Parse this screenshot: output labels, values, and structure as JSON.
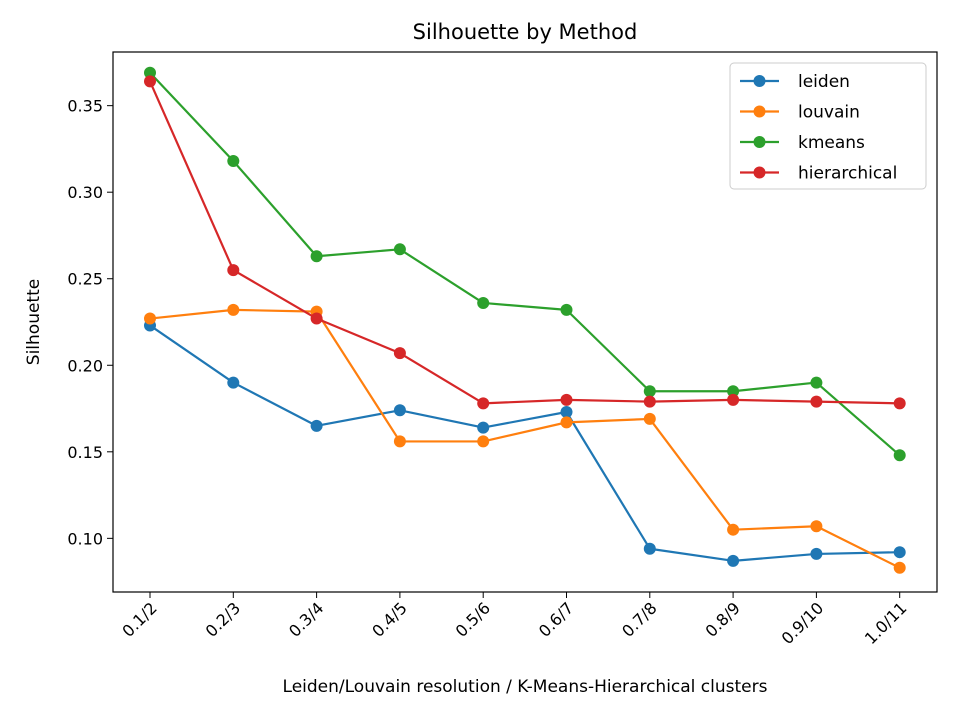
{
  "chart_data": {
    "type": "line",
    "title": "Silhouette by Method",
    "xlabel": "Leiden/Louvain resolution  /  K-Means-Hierarchical clusters",
    "ylabel": "Silhouette",
    "categories": [
      "0.1/2",
      "0.2/3",
      "0.3/4",
      "0.4/5",
      "0.5/6",
      "0.6/7",
      "0.7/8",
      "0.8/9",
      "0.9/10",
      "1.0/11"
    ],
    "ylim": [
      0.069,
      0.381
    ],
    "yticks": [
      "0.10",
      "0.15",
      "0.20",
      "0.25",
      "0.30",
      "0.35"
    ],
    "grid": false,
    "legend_position": "top-right",
    "series": [
      {
        "name": "leiden",
        "color": "#1f77b4",
        "values": [
          0.223,
          0.19,
          0.165,
          0.174,
          0.164,
          0.173,
          0.094,
          0.087,
          0.091,
          0.092
        ]
      },
      {
        "name": "louvain",
        "color": "#ff7f0e",
        "values": [
          0.227,
          0.232,
          0.231,
          0.156,
          0.156,
          0.167,
          0.169,
          0.105,
          0.107,
          0.083
        ]
      },
      {
        "name": "kmeans",
        "color": "#2ca02c",
        "values": [
          0.369,
          0.318,
          0.263,
          0.267,
          0.236,
          0.232,
          0.185,
          0.185,
          0.19,
          0.148
        ]
      },
      {
        "name": "hierarchical",
        "color": "#d62728",
        "values": [
          0.364,
          0.255,
          0.227,
          0.207,
          0.178,
          0.18,
          0.179,
          0.18,
          0.179,
          0.178
        ]
      }
    ]
  }
}
